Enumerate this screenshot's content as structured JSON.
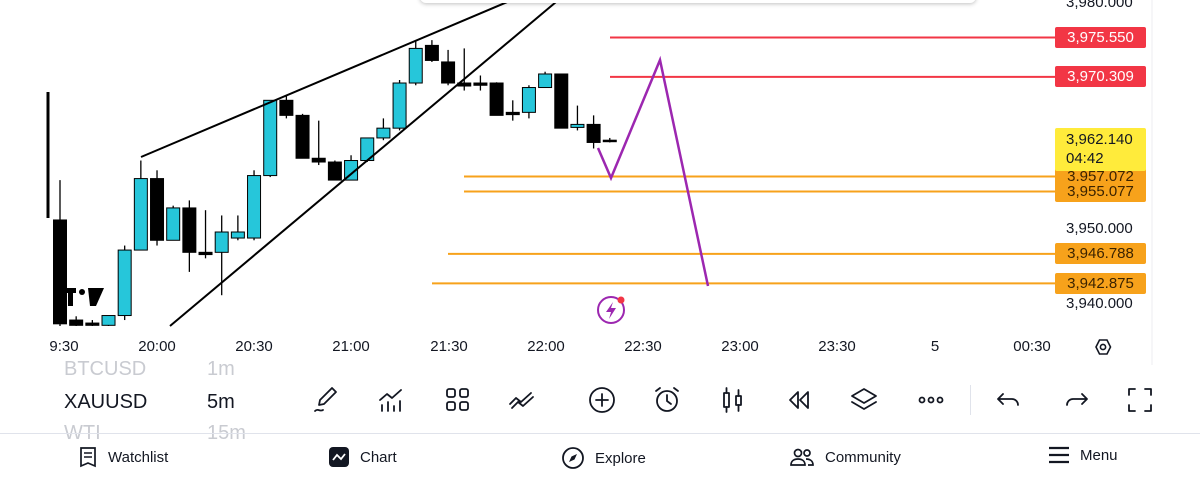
{
  "chart": {
    "symbol": "XAUUSD",
    "interval": "5m",
    "colors": {
      "up": "#26c6da",
      "down": "#000000",
      "resistance": "#f23645",
      "support": "#f7a21b",
      "projection": "#9c27b0",
      "current_price": "#ffeb3b"
    },
    "price_axis": [
      "3,980.000",
      "3,950.000",
      "3,940.000"
    ],
    "price_axis_values": [
      3980,
      3950,
      3940
    ],
    "time_axis": [
      "9:30",
      "20:00",
      "20:30",
      "21:00",
      "21:30",
      "22:00",
      "22:30",
      "23:00",
      "23:30",
      "5",
      "00:30"
    ],
    "levels": [
      {
        "price": 3975.55,
        "label": "3,975.550",
        "type": "resistance"
      },
      {
        "price": 3970.309,
        "label": "3,970.309",
        "type": "resistance"
      },
      {
        "price": 3957.072,
        "label": "3,957.072",
        "type": "support"
      },
      {
        "price": 3955.077,
        "label": "3,955.077",
        "type": "support"
      },
      {
        "price": 3946.788,
        "label": "3,946.788",
        "type": "support"
      },
      {
        "price": 3942.875,
        "label": "3,942.875",
        "type": "support"
      }
    ],
    "current_price": {
      "label": "3,962.140",
      "countdown": "04:42"
    },
    "candles": [
      [
        "19:30",
        3951.3,
        3956.6,
        3937.0,
        3937.5
      ],
      [
        "19:35",
        3938.0,
        3938.5,
        3937.0,
        3937.3
      ],
      [
        "19:40",
        3937.6,
        3938.0,
        3937.0,
        3937.3
      ],
      [
        "19:45",
        3937.3,
        3938.6,
        3937.0,
        3938.6
      ],
      [
        "19:50",
        3938.6,
        3947.9,
        3938.0,
        3947.3
      ],
      [
        "19:55",
        3947.3,
        3959.2,
        3947.3,
        3956.8
      ],
      [
        "20:00",
        3956.8,
        3957.9,
        3947.9,
        3948.6
      ],
      [
        "20:05",
        3948.6,
        3953.2,
        3948.6,
        3952.9
      ],
      [
        "20:10",
        3952.9,
        3953.9,
        3944.4,
        3947.0
      ],
      [
        "20:15",
        3947.0,
        3952.6,
        3946.2,
        3946.7
      ],
      [
        "20:20",
        3947.0,
        3951.9,
        3941.3,
        3949.7
      ],
      [
        "20:25",
        3948.9,
        3951.9,
        3948.6,
        3949.7
      ],
      [
        "20:30",
        3948.9,
        3957.9,
        3948.6,
        3957.2
      ],
      [
        "20:35",
        3957.2,
        3967.2,
        3957.0,
        3967.2
      ],
      [
        "20:40",
        3967.2,
        3967.9,
        3964.8,
        3965.2
      ],
      [
        "20:45",
        3965.2,
        3965.4,
        3959.5,
        3959.5
      ],
      [
        "20:50",
        3959.5,
        3964.5,
        3958.6,
        3959.0
      ],
      [
        "20:55",
        3959.0,
        3959.2,
        3956.6,
        3956.6
      ],
      [
        "21:00",
        3956.6,
        3959.9,
        3956.6,
        3959.2
      ],
      [
        "21:05",
        3959.2,
        3962.2,
        3959.0,
        3962.2
      ],
      [
        "21:10",
        3962.2,
        3964.8,
        3961.9,
        3963.5
      ],
      [
        "21:15",
        3963.5,
        3969.9,
        3963.2,
        3969.5
      ],
      [
        "21:20",
        3969.5,
        3975.2,
        3969.2,
        3974.1
      ],
      [
        "21:25",
        3974.5,
        3975.2,
        3972.3,
        3972.5
      ],
      [
        "21:30",
        3972.3,
        3973.9,
        3969.2,
        3969.5
      ],
      [
        "21:35",
        3969.5,
        3974.1,
        3968.5,
        3969.1
      ],
      [
        "21:40",
        3969.5,
        3970.5,
        3968.5,
        3969.2
      ],
      [
        "21:45",
        3969.5,
        3969.6,
        3965.2,
        3965.2
      ],
      [
        "21:50",
        3965.6,
        3967.2,
        3964.5,
        3965.3
      ],
      [
        "21:55",
        3965.6,
        3969.2,
        3964.8,
        3968.9
      ],
      [
        "22:00",
        3968.9,
        3971.0,
        3968.9,
        3970.7
      ],
      [
        "22:05",
        3970.7,
        3970.7,
        3963.5,
        3963.5
      ],
      [
        "22:10",
        3963.6,
        3966.5,
        3963.2,
        3964.0
      ],
      [
        "22:15",
        3964.0,
        3965.2,
        3960.8,
        3961.6
      ],
      [
        "22:20",
        3961.9,
        3962.2,
        3961.6,
        3961.8
      ]
    ]
  },
  "symbols": {
    "prev": "BTCUSD",
    "current": "XAUUSD",
    "next": "WTI"
  },
  "intervals": {
    "prev": "1m",
    "current": "5m",
    "next": "15m"
  },
  "tools": [
    "pencil-icon",
    "indicators-icon",
    "layout-icon",
    "compare-icon",
    "add-icon",
    "alert-icon",
    "candles-icon",
    "replay-icon",
    "layers-icon",
    "more-icon",
    "undo-icon",
    "redo-icon",
    "fullscreen-icon"
  ],
  "nav": {
    "watchlist": "Watchlist",
    "chart": "Chart",
    "explore": "Explore",
    "community": "Community",
    "menu": "Menu"
  }
}
